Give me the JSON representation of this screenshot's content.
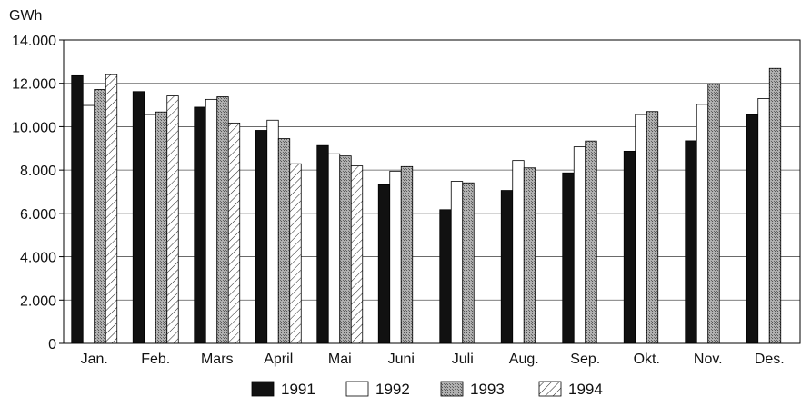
{
  "chart_data": {
    "type": "bar",
    "ylabel": "GWh",
    "ylim": [
      0,
      14000
    ],
    "yticks": [
      0,
      2000,
      4000,
      6000,
      8000,
      10000,
      12000,
      14000
    ],
    "ytick_labels": [
      "0",
      "2.000",
      "4.000",
      "6.000",
      "8.000",
      "10.000",
      "12.000",
      "14.000"
    ],
    "grid": true,
    "legend_position": "bottom",
    "categories": [
      "Jan.",
      "Feb.",
      "Mars",
      "April",
      "Mai",
      "Juni",
      "Juli",
      "Aug.",
      "Sep.",
      "Okt.",
      "Nov.",
      "Des."
    ],
    "series": [
      {
        "name": "1991",
        "pattern": "solid-black",
        "values": [
          12350,
          11620,
          10900,
          9830,
          9130,
          7320,
          6170,
          7060,
          7870,
          8870,
          9350,
          10550
        ]
      },
      {
        "name": "1992",
        "pattern": "white",
        "values": [
          10980,
          10560,
          11260,
          10300,
          8750,
          7950,
          7480,
          8440,
          9070,
          10560,
          11030,
          11300
        ]
      },
      {
        "name": "1993",
        "pattern": "stippled-gray",
        "values": [
          11720,
          10680,
          11380,
          9450,
          8650,
          8160,
          7410,
          8100,
          9340,
          10700,
          11960,
          12690
        ]
      },
      {
        "name": "1994",
        "pattern": "diagonal-hatch",
        "values": [
          12400,
          11420,
          10170,
          8290,
          8190,
          null,
          null,
          null,
          null,
          null,
          null,
          null
        ]
      }
    ],
    "colors": {
      "bar_black": "#111111",
      "bar_white": "#ffffff",
      "bar_gray": "#a9a9a9",
      "axis": "#000000",
      "grid": "#555555"
    }
  }
}
